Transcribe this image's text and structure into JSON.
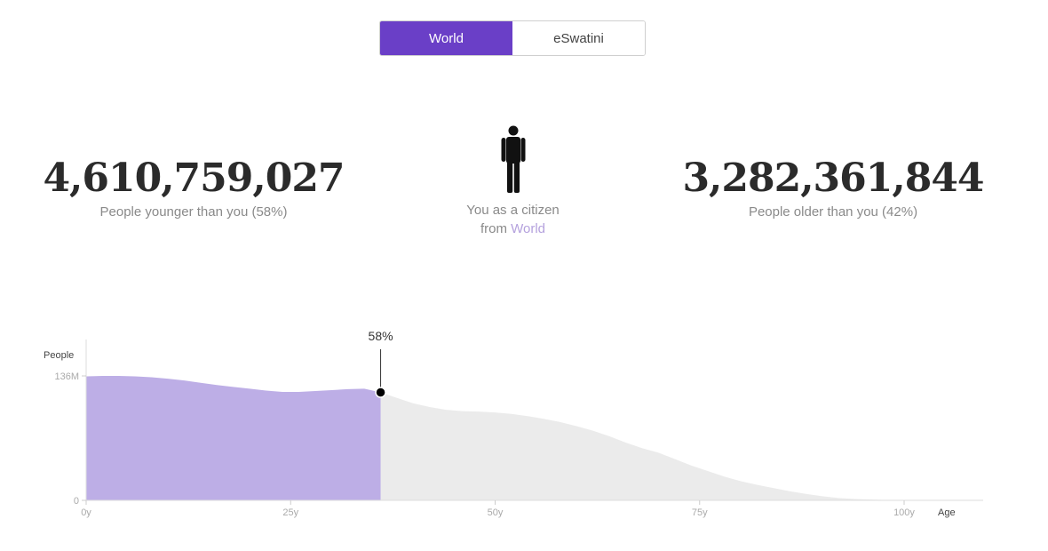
{
  "toggle": {
    "options": [
      "World",
      "eSwatini"
    ],
    "active": "World"
  },
  "stats": {
    "younger": {
      "value": "4,610,759,027",
      "caption": "People younger than you (58%)"
    },
    "older": {
      "value": "3,282,361,844",
      "caption": "People older than you (42%)"
    },
    "citizen": {
      "caption_line1": "You as a citizen",
      "caption_prefix": "from",
      "caption_place": "World"
    }
  },
  "chart_data": {
    "type": "area",
    "ylabel": "People",
    "xlabel": "Age",
    "y_ticks": [
      {
        "value": 0,
        "label": "0"
      },
      {
        "value": 136,
        "label": "136M"
      }
    ],
    "x_ticks": [
      {
        "value": 0,
        "label": "0y"
      },
      {
        "value": 25,
        "label": "25y"
      },
      {
        "value": 50,
        "label": "50y"
      },
      {
        "value": 75,
        "label": "75y"
      },
      {
        "value": 100,
        "label": "100y"
      }
    ],
    "xlim": [
      0,
      110
    ],
    "ylim": [
      0,
      136
    ],
    "marker": {
      "age": 36,
      "label": "58%"
    },
    "colors": {
      "below": "#bdaee6",
      "above": "#ebebeb",
      "accent": "#6a3fc7"
    },
    "x": [
      0,
      2,
      4,
      6,
      8,
      10,
      12,
      14,
      16,
      18,
      20,
      22,
      24,
      26,
      28,
      30,
      32,
      34,
      36,
      38,
      40,
      42,
      44,
      46,
      48,
      50,
      52,
      54,
      56,
      58,
      60,
      62,
      64,
      66,
      68,
      70,
      72,
      74,
      76,
      78,
      80,
      82,
      84,
      86,
      88,
      90,
      92,
      94,
      96,
      98,
      100,
      102,
      104,
      106,
      108,
      110
    ],
    "values": [
      135.5,
      136,
      136,
      135.5,
      134.5,
      133,
      131,
      128.5,
      126,
      124,
      122,
      120,
      118.5,
      118.5,
      119.5,
      120.5,
      121.5,
      122,
      118,
      112,
      106,
      102,
      99,
      97.5,
      97,
      96,
      94.5,
      92,
      89,
      85.5,
      81,
      76,
      70,
      63,
      57,
      52,
      45,
      38,
      32,
      26,
      21,
      17,
      13.5,
      10,
      7,
      4.5,
      2.5,
      1.4,
      0.8,
      0.4,
      0.2,
      0.1,
      0.05,
      0,
      0,
      0
    ]
  }
}
